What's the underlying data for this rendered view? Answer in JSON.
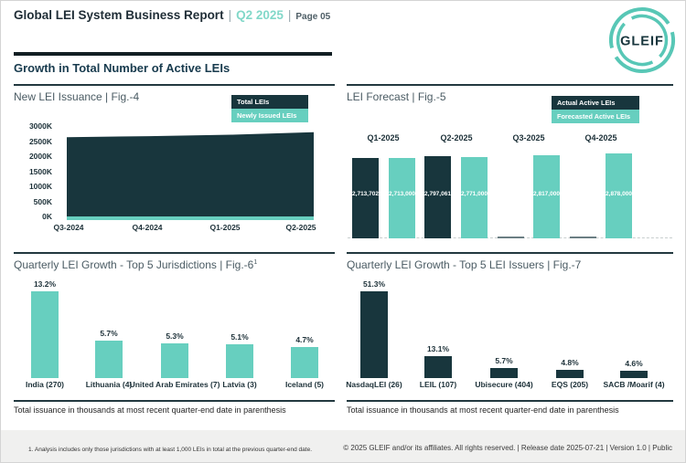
{
  "header": {
    "title": "Global LEI System Business Report",
    "separator": "|",
    "period": "Q2 2025",
    "page_label": "Page 05",
    "logo_text": "GLEIF"
  },
  "section_title": "Growth in Total Number of Active LEIs",
  "colors": {
    "dark": "#18363d",
    "teal": "#67cfbf",
    "accent_teal": "#82d8c9",
    "logo_teal": "#58c7b6",
    "axis_text": "#1c3038",
    "chart_title": "#4a5b63",
    "no_data_sliver": "#6b7e83"
  },
  "chart_data": [
    {
      "id": "fig-4",
      "type": "area",
      "title": "New LEI Issuance | Fig.-4",
      "categories": [
        "Q3-2024",
        "Q4-2024",
        "Q1-2025",
        "Q2-2025"
      ],
      "series": [
        {
          "name": "Total LEIs",
          "color": "dark",
          "values_thousands": [
            2634,
            2668,
            2714,
            2797
          ],
          "values_estimated": true
        },
        {
          "name": "Newly Issued LEIs",
          "color": "teal",
          "values_thousands": [
            40,
            40,
            45,
            45
          ],
          "values_estimated": true
        }
      ],
      "y_ticks": [
        "3000K",
        "2500K",
        "2000K",
        "1500K",
        "1000K",
        "500K",
        "0K"
      ],
      "ylim_thousands": [
        0,
        3000
      ],
      "legend_position": "top-right"
    },
    {
      "id": "fig-5",
      "type": "bar",
      "title": "LEI Forecast | Fig.-5",
      "categories": [
        "Q1-2025",
        "Q2-2025",
        "Q3-2025",
        "Q4-2025"
      ],
      "series": [
        {
          "name": "Actual Active LEIs",
          "color": "dark",
          "values": [
            2713702,
            2797061,
            null,
            null
          ],
          "labels": [
            "2,713,702",
            "2,797,061",
            "",
            ""
          ]
        },
        {
          "name": "Forecasted Active LEIs",
          "color": "teal",
          "values": [
            2713000,
            2771000,
            2817000,
            2878000
          ],
          "labels": [
            "2,713,000",
            "2,771,000",
            "2,817,000",
            "2,878,000"
          ]
        }
      ],
      "ylim": [
        0,
        3000000
      ],
      "legend_position": "top-right"
    },
    {
      "id": "fig-6",
      "type": "bar",
      "title": "Quarterly LEI Growth - Top 5 Jurisdictions | Fig.-6",
      "title_superscript": "1",
      "categories": [
        "India (270)",
        "Lithuania (4)",
        "United Arab Emirates (7)",
        "Latvia (3)",
        "Iceland (5)"
      ],
      "values": [
        13.2,
        5.7,
        5.3,
        5.1,
        4.7
      ],
      "value_labels": [
        "13.2%",
        "5.7%",
        "5.3%",
        "5.1%",
        "4.7%"
      ],
      "bar_color_key": "teal",
      "footnote": "Total issuance in thousands at most recent quarter-end date in parenthesis"
    },
    {
      "id": "fig-7",
      "type": "bar",
      "title": "Quarterly LEI Growth - Top 5 LEI Issuers | Fig.-7",
      "categories": [
        "NasdaqLEI (26)",
        "LEIL (107)",
        "Ubisecure (404)",
        "EQS (205)",
        "SACB /Moarif (4)"
      ],
      "values": [
        51.3,
        13.1,
        5.7,
        4.8,
        4.6
      ],
      "value_labels": [
        "51.3%",
        "13.1%",
        "5.7%",
        "4.8%",
        "4.6%"
      ],
      "bar_color_key": "dark",
      "footnote": "Total issuance in thousands at most recent quarter-end date in parenthesis"
    }
  ],
  "footer": {
    "jurisdiction_note": "1. Analysis includes only those jurisdictions with at least 1,000 LEIs in total at the previous quarter-end date.",
    "copyright": "© 2025 GLEIF and/or its affiliates. All rights reserved.  |  Release date 2025-07-21  |  Version 1.0  |  Public"
  }
}
